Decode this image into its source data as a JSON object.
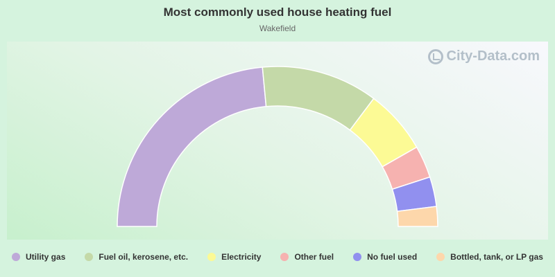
{
  "chart_data": {
    "type": "pie",
    "subtype": "semi-donut",
    "title": "Most commonly used house heating fuel",
    "subtitle": "Wakefield",
    "categories": [
      "Utility gas",
      "Fuel oil, kerosene, etc.",
      "Electricity",
      "Other fuel",
      "No fuel used",
      "Bottled, tank, or LP gas"
    ],
    "values": [
      47.0,
      23.5,
      13.0,
      6.5,
      6.0,
      4.0
    ],
    "colors": [
      "#bea9d8",
      "#c4d9a8",
      "#fcfa95",
      "#f6b2b0",
      "#9190ef",
      "#fdd7ab"
    ],
    "legend_position": "bottom"
  },
  "watermark": {
    "text": "City-Data.com",
    "icon": "city-data-logo-icon"
  }
}
